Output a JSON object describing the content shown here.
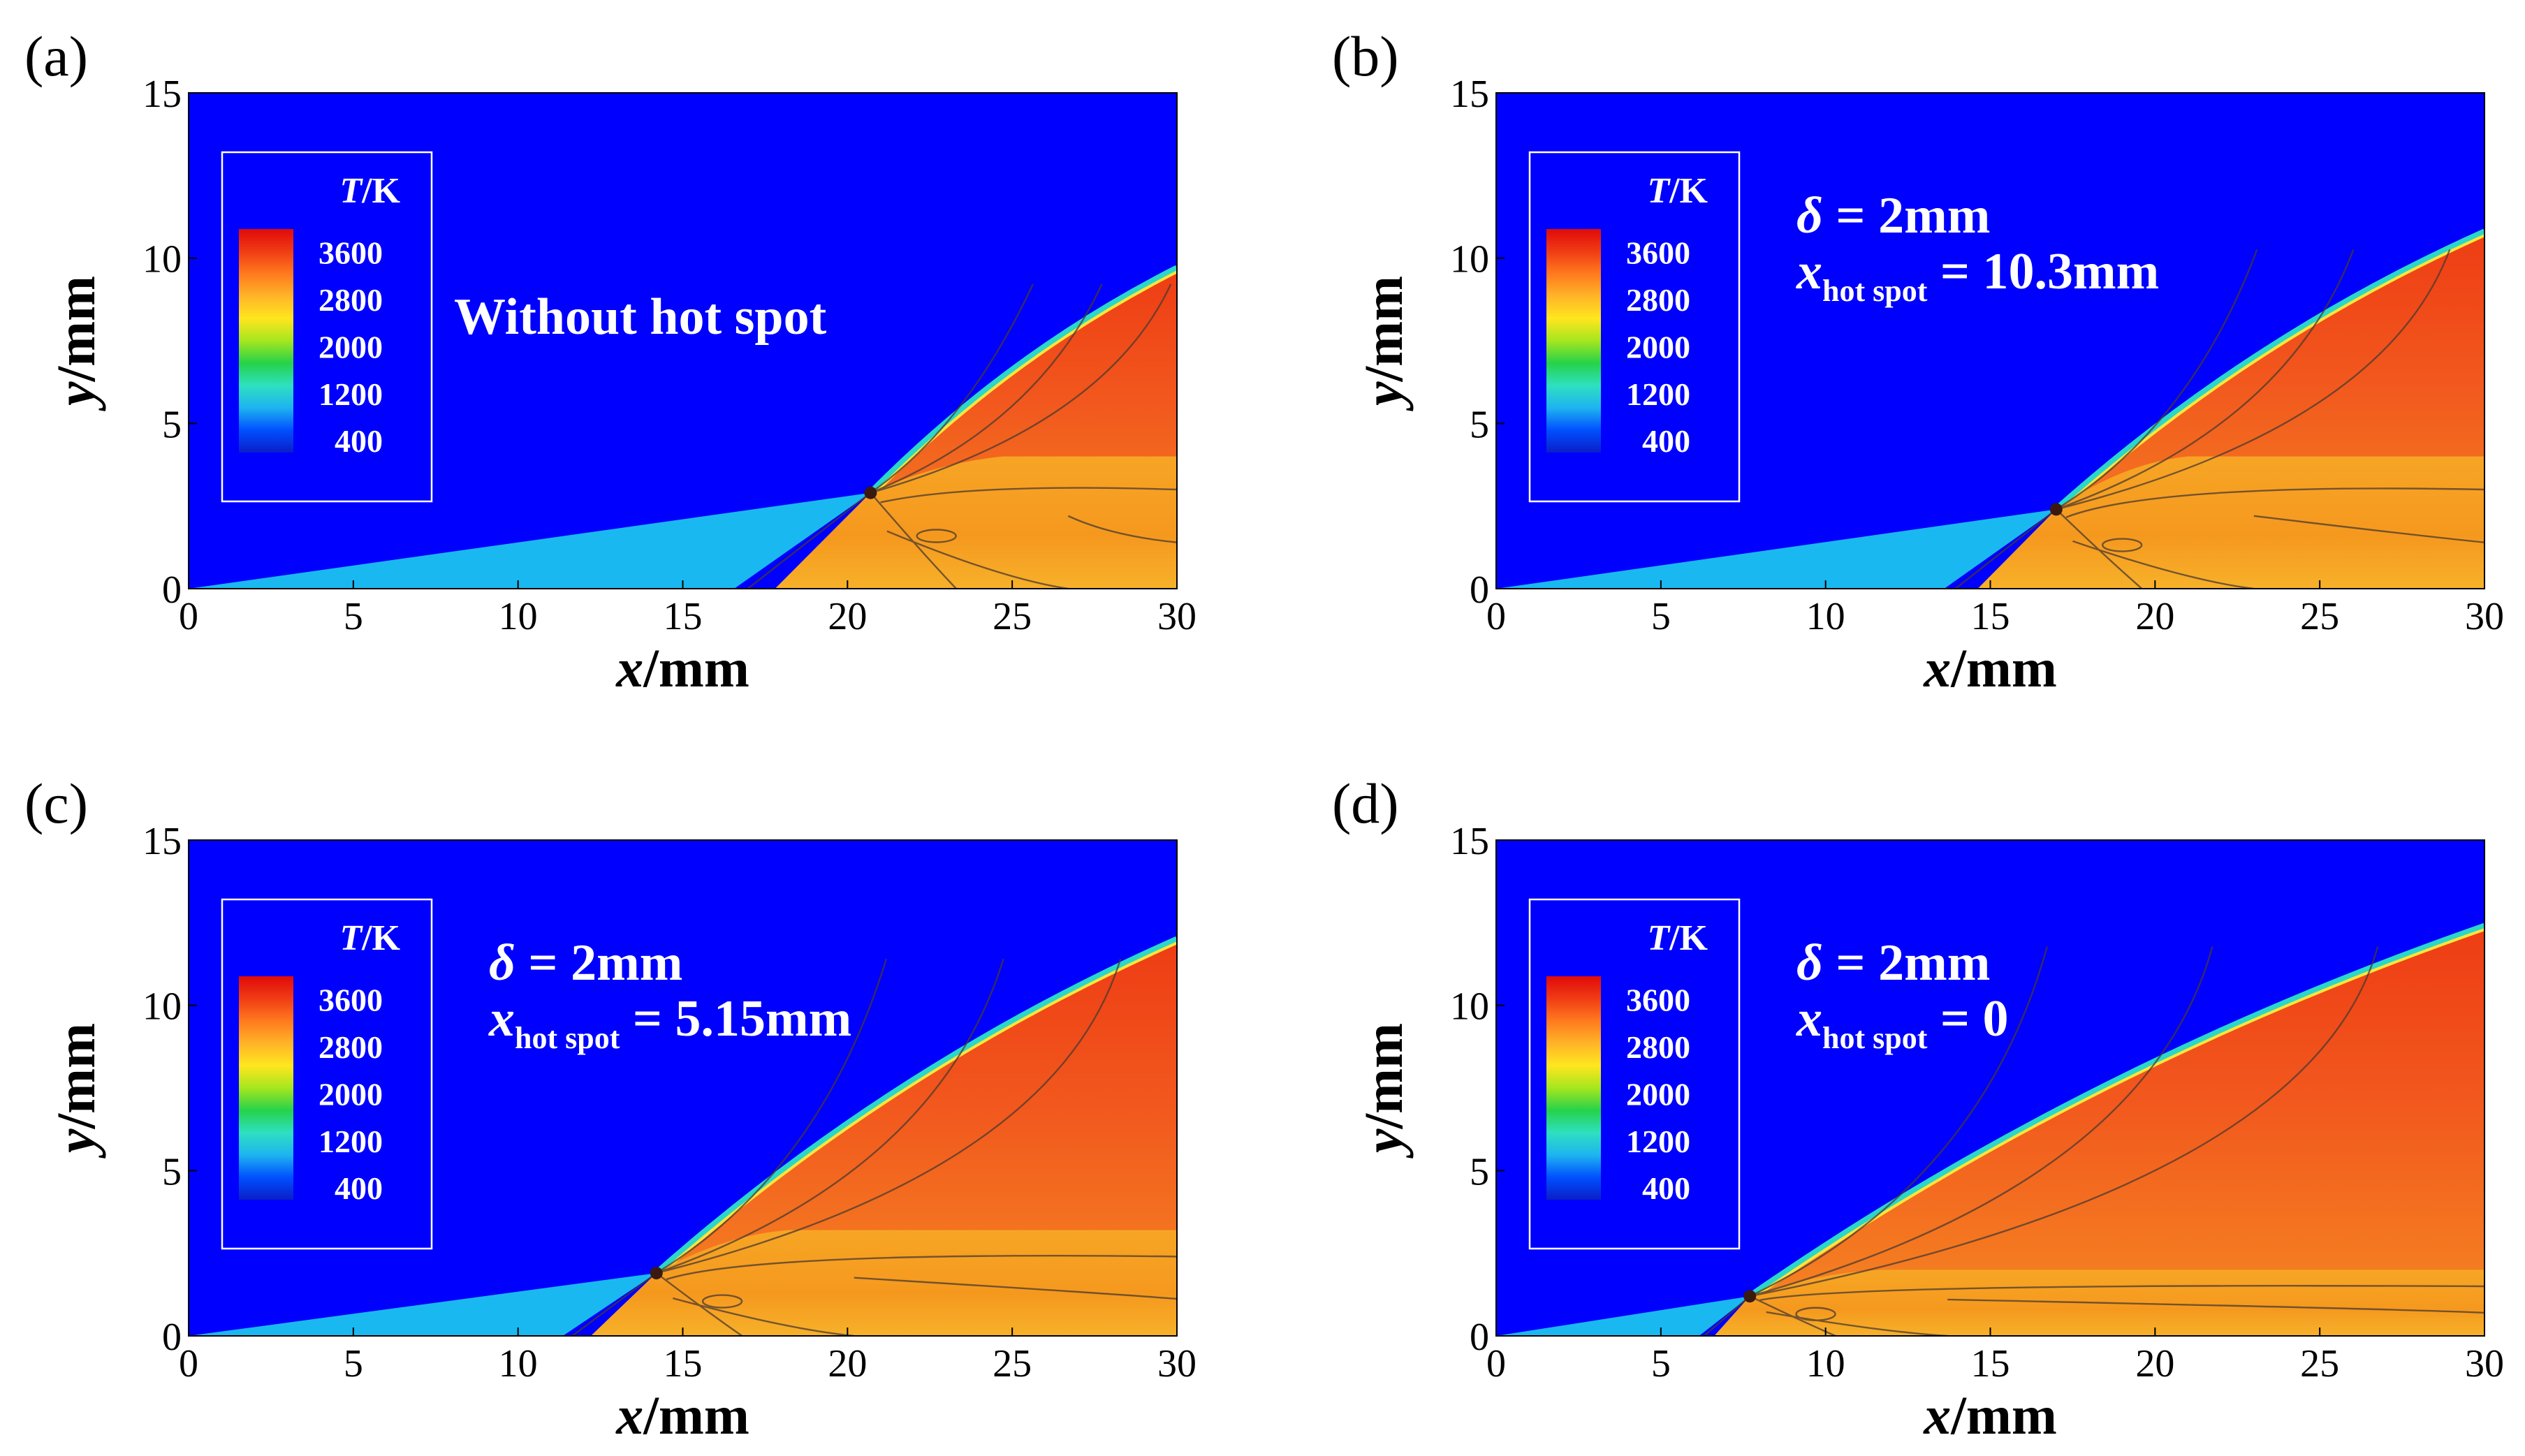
{
  "chart_data": {
    "type": "heatmap",
    "shared": {
      "xlabel_var": "x",
      "xlabel_unit": "/mm",
      "ylabel_var": "y",
      "ylabel_unit": "/mm",
      "xlim": [
        0,
        30
      ],
      "ylim": [
        0,
        15
      ],
      "xticks": [
        0,
        5,
        10,
        15,
        20,
        25,
        30
      ],
      "yticks": [
        0,
        5,
        10,
        15
      ],
      "colorbar_title_var": "T",
      "colorbar_title_unit": "/K",
      "colorbar_levels": [
        400,
        1200,
        2000,
        2800,
        3600
      ],
      "colorbar_range": [
        200,
        4000
      ],
      "colorbar_colors": [
        "#0a1ec8",
        "#0050ff",
        "#1eb4f0",
        "#2ee0c0",
        "#26d24a",
        "#a6e61e",
        "#ffe61e",
        "#ffb428",
        "#ff7a1e",
        "#f03c14",
        "#e00a0a"
      ],
      "colors": {
        "freestream": "#0000ff",
        "wedge_region": "#1ab8f0",
        "burned": "#f2561e",
        "lower_product": "#f59a1e"
      }
    },
    "panels": [
      {
        "label": "(a)",
        "annotation_lines": [
          {
            "main": "Without hot spot"
          }
        ],
        "triple_point": [
          20.7,
          2.9
        ],
        "shock_end_y": 9.7,
        "lower_band_y": 4.0
      },
      {
        "label": "(b)",
        "annotation_lines": [
          {
            "sym": "δ",
            "main": " = 2mm"
          },
          {
            "sym": "x",
            "sub": "hot spot",
            "main": " = 10.3mm"
          }
        ],
        "triple_point": [
          17.0,
          2.4
        ],
        "shock_end_y": 10.8,
        "lower_band_y": 4.0
      },
      {
        "label": "(c)",
        "annotation_lines": [
          {
            "sym": "δ",
            "main": " = 2mm"
          },
          {
            "sym": "x",
            "sub": "hot spot",
            "main": " = 5.15mm"
          }
        ],
        "triple_point": [
          14.2,
          1.9
        ],
        "shock_end_y": 12.0,
        "lower_band_y": 3.2
      },
      {
        "label": "(d)",
        "annotation_lines": [
          {
            "sym": "δ",
            "main": " = 2mm"
          },
          {
            "sym": "x",
            "sub": "hot spot",
            "main": " = 0"
          }
        ],
        "triple_point": [
          7.7,
          1.2
        ],
        "shock_end_y": 12.4,
        "lower_band_y": 2.0
      }
    ]
  }
}
